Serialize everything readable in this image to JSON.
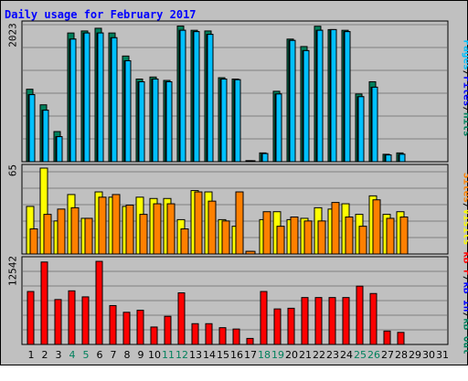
{
  "chart_data": {
    "type": "bar",
    "title": "Daily usage for February 2017",
    "categories": [
      "1",
      "2",
      "3",
      "4",
      "5",
      "6",
      "7",
      "8",
      "9",
      "10",
      "11",
      "12",
      "13",
      "14",
      "15",
      "16",
      "17",
      "18",
      "19",
      "20",
      "21",
      "22",
      "23",
      "24",
      "25",
      "26",
      "27",
      "28",
      "29",
      "30",
      "31"
    ],
    "weekend_days": [
      "4",
      "5",
      "11",
      "12",
      "18",
      "19",
      "25",
      "26"
    ],
    "panels": [
      {
        "id": "hits",
        "max_label": "2023",
        "ylim": [
          0,
          2023
        ],
        "series": [
          {
            "name": "Hits",
            "color": "#00805c",
            "values": [
              1070,
              840,
              445,
              1900,
              1930,
              1970,
              1900,
              1560,
              1220,
              1250,
              1200,
              2003,
              1940,
              1930,
              1240,
              1220,
              15,
              130,
              1040,
              1810,
              1700,
              2000,
              1950,
              1940,
              1000,
              1180,
              110,
              130,
              0,
              0,
              0
            ]
          },
          {
            "name": "Files",
            "color": "#0000ff",
            "values": [
              990,
              760,
              370,
              1810,
              1900,
              1900,
              1830,
              1490,
              1180,
              1220,
              1180,
              1940,
              1920,
              1880,
              1220,
              1210,
              0,
              120,
              1000,
              1790,
              1640,
              1940,
              1950,
              1920,
              960,
              1100,
              100,
              110,
              0,
              0,
              0
            ]
          },
          {
            "name": "Pages",
            "color": "#00c0ff",
            "values": [
              990,
              760,
              370,
              1810,
              1900,
              1900,
              1830,
              1490,
              1180,
              1220,
              1180,
              1940,
              1920,
              1880,
              1220,
              1210,
              0,
              120,
              1000,
              1790,
              1640,
              1940,
              1950,
              1920,
              960,
              1100,
              100,
              110,
              0,
              0,
              0
            ]
          }
        ]
      },
      {
        "id": "sites",
        "max_label": "65",
        "ylim": [
          0,
          65
        ],
        "series": [
          {
            "name": "Visits",
            "color": "#ffff00",
            "values": [
              36,
              65,
              25,
              45,
              27,
              47,
              43,
              36,
              43,
              42,
              42,
              26,
              48,
              47,
              26,
              21,
              2,
              26,
              32,
              26,
              27,
              35,
              34,
              38,
              30,
              44,
              30,
              32,
              0,
              0,
              0
            ]
          },
          {
            "name": "Sites",
            "color": "#ff8000",
            "values": [
              19,
              30,
              34,
              35,
              27,
              43,
              45,
              37,
              30,
              38,
              38,
              19,
              47,
              40,
              25,
              47,
              0,
              32,
              21,
              28,
              25,
              25,
              39,
              28,
              21,
              41,
              27,
              28,
              0,
              0,
              0
            ]
          }
        ]
      },
      {
        "id": "kbytes",
        "max_label": "12542",
        "ylim": [
          0,
          12542
        ],
        "series": [
          {
            "name": "kB F",
            "color": "#ff0000",
            "values": [
              7900,
              12300,
              6700,
              8000,
              7100,
              12400,
              5800,
              4800,
              5100,
              2600,
              4200,
              7700,
              3100,
              3100,
              2500,
              2300,
              900,
              7900,
              5300,
              5400,
              7000,
              7000,
              7000,
              7000,
              8700,
              7600,
              2000,
              1800,
              0,
              0,
              0
            ]
          }
        ]
      }
    ],
    "side_labels": {
      "hits": [
        {
          "text": "Pages",
          "color": "#00c0ff"
        },
        {
          "text": "/",
          "color": "#000000"
        },
        {
          "text": "Files",
          "color": "#0000ff"
        },
        {
          "text": "/",
          "color": "#000000"
        },
        {
          "text": "Hits",
          "color": "#00805c"
        }
      ],
      "sites": [
        {
          "text": "Sites",
          "color": "#ff8000"
        },
        {
          "text": "/",
          "color": "#000000"
        },
        {
          "text": "Visits",
          "color": "#ffff00"
        }
      ],
      "kbytes": [
        {
          "text": "kB F",
          "color": "#ff0000"
        },
        {
          "text": "/",
          "color": "#000000"
        },
        {
          "text": "kB In",
          "color": "#0000ff"
        },
        {
          "text": "/",
          "color": "#000000"
        },
        {
          "text": "kB Out",
          "color": "#00805c"
        }
      ]
    },
    "colors": {
      "background": "#c0c0c0",
      "grid": "#808080",
      "weekday_label": "#000000",
      "weekend_label": "#00805c"
    }
  }
}
